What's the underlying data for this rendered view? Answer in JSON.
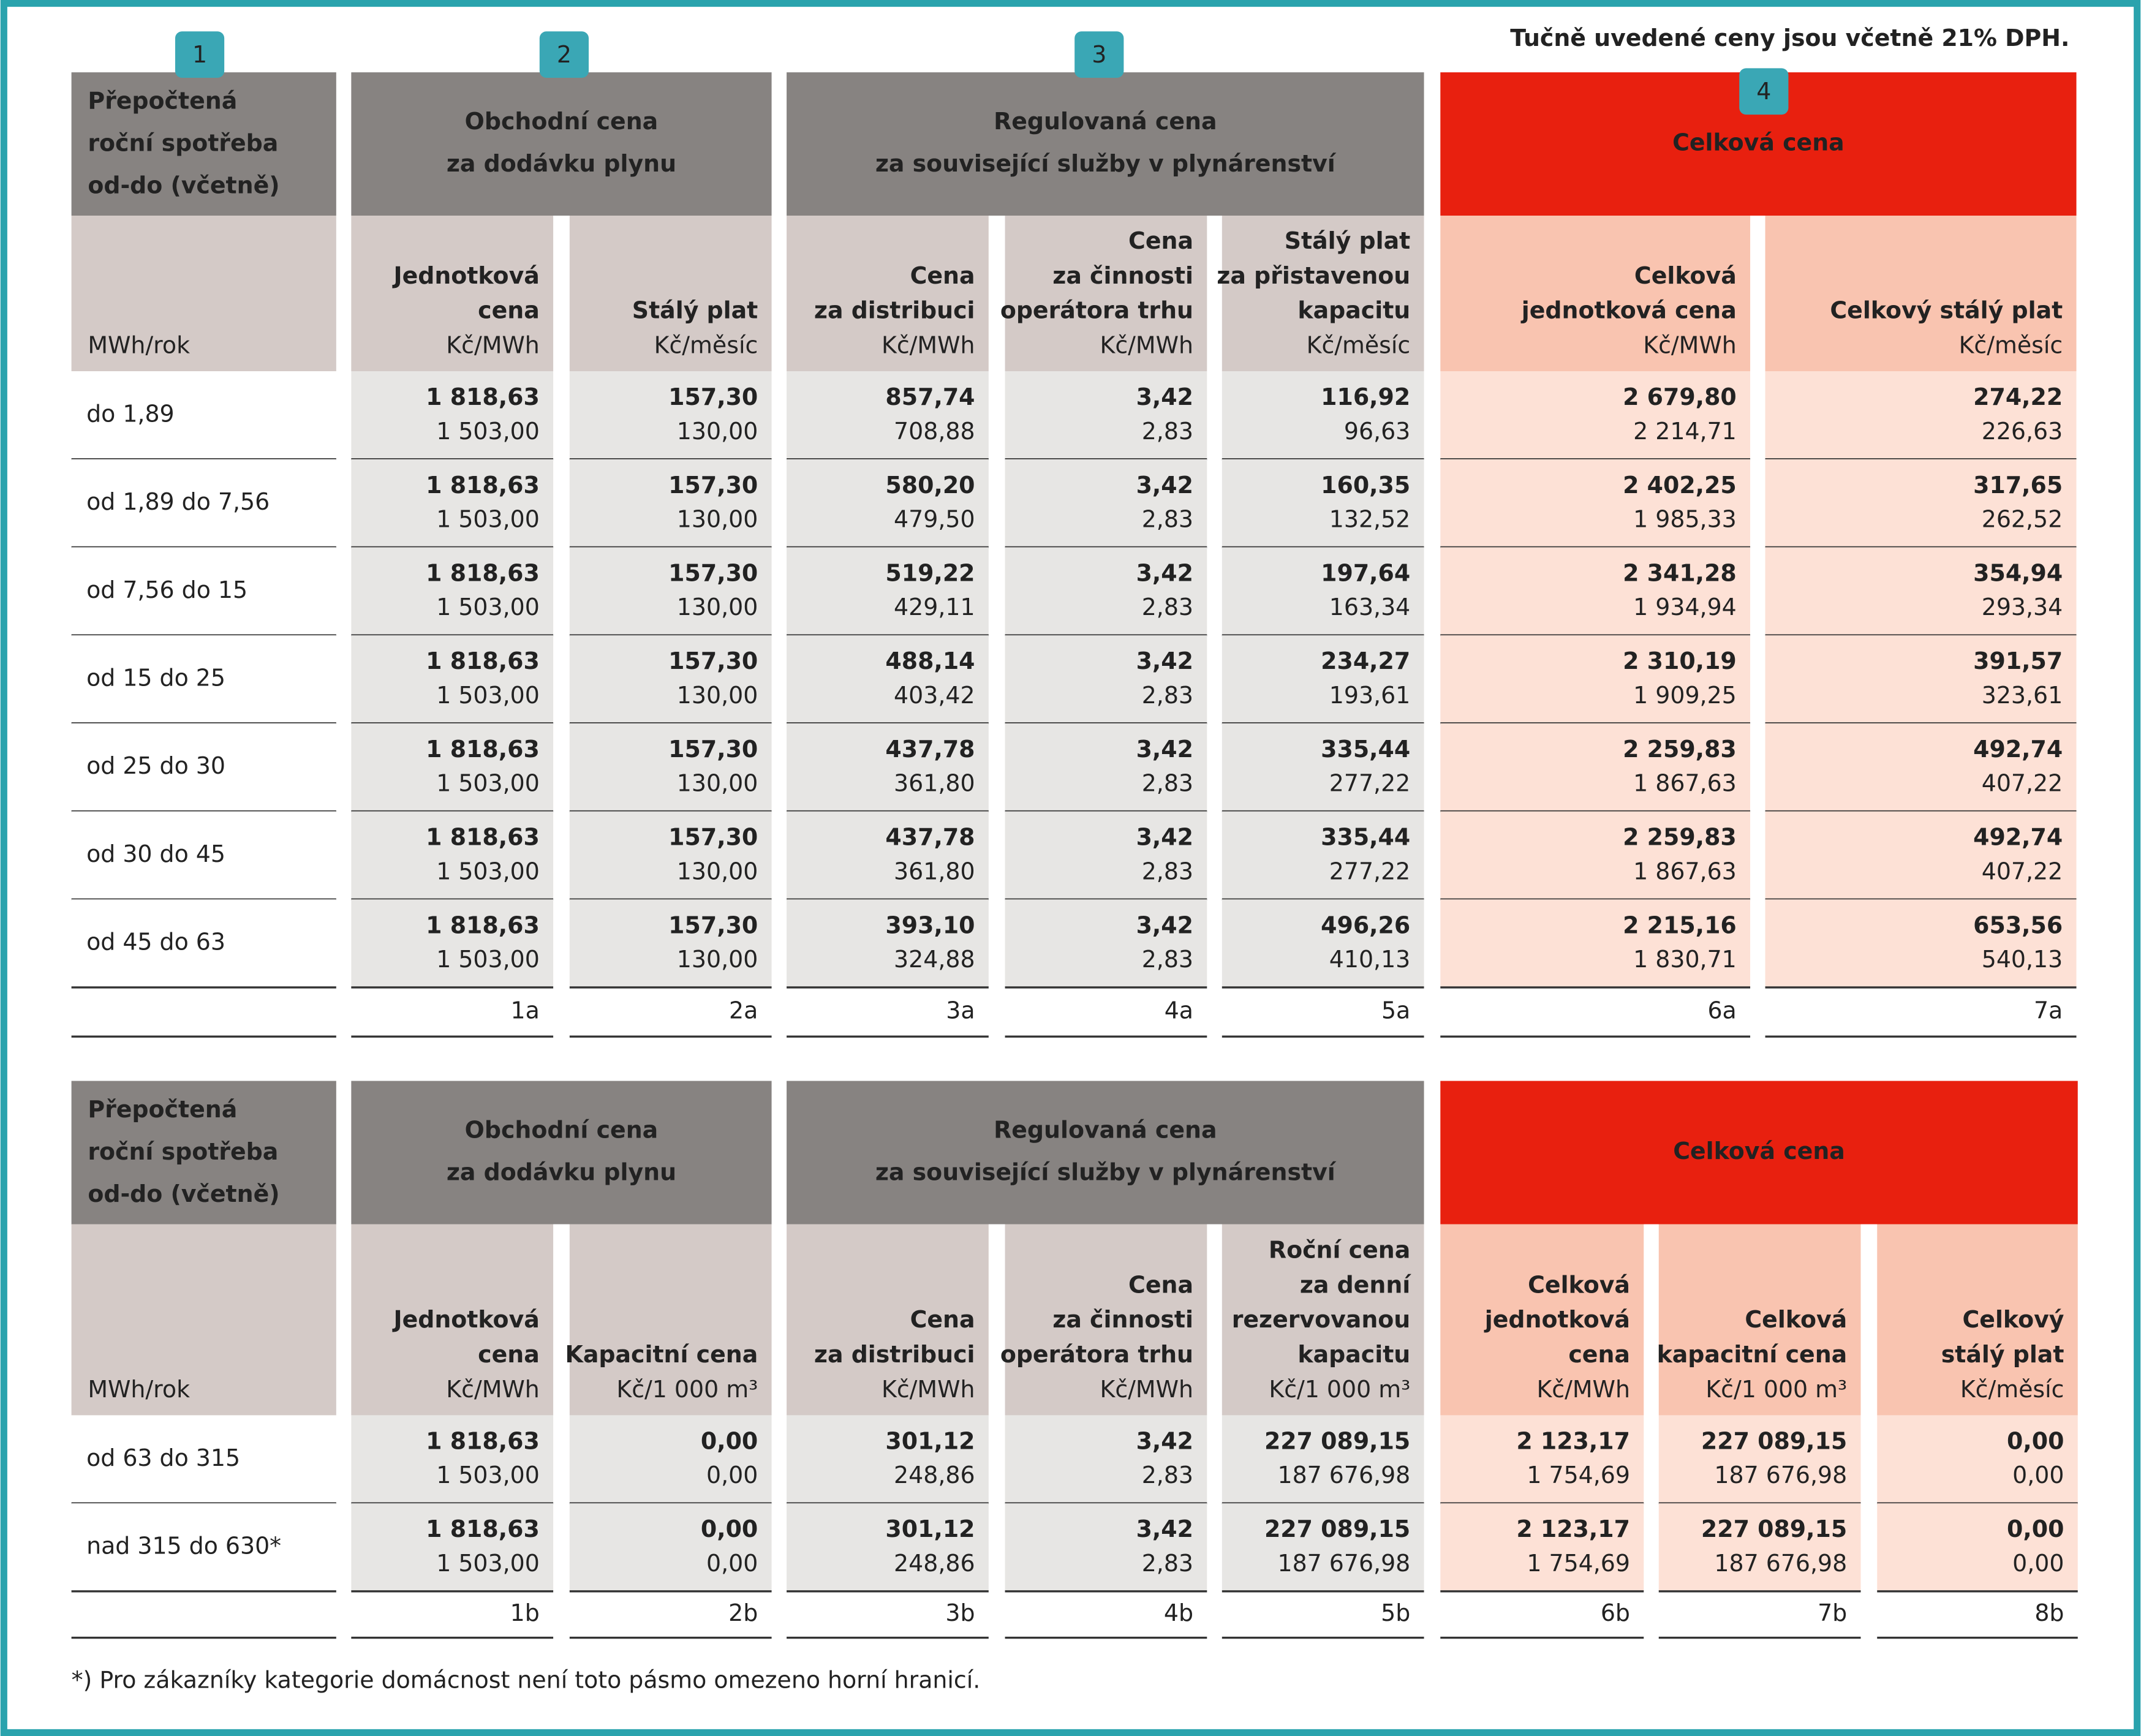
{
  "note": "Tučně uvedené ceny jsou včetně 21% DPH.",
  "badges": [
    "1",
    "2",
    "3",
    "4"
  ],
  "tables": [
    {
      "groups": [
        [
          "Přepočtená",
          "roční spotřeba",
          "od-do (včetně)"
        ],
        [
          "Obchodní cena",
          "za dodávku plynu"
        ],
        [
          "Regulovaná cena",
          "za související služby v plynárenství"
        ],
        [
          "Celková cena"
        ]
      ],
      "columns": [
        {
          "unit": "MWh/rok"
        },
        {
          "title": [
            "Jednotková",
            "cena"
          ],
          "unit": "Kč/MWh"
        },
        {
          "title": [
            "Stálý plat"
          ],
          "unit": "Kč/měsíc"
        },
        {
          "title": [
            "Cena",
            "za distribuci"
          ],
          "unit": "Kč/MWh"
        },
        {
          "title": [
            "Cena",
            "za činnosti",
            "operátora trhu"
          ],
          "unit": "Kč/MWh"
        },
        {
          "title": [
            "Stálý plat",
            "za přistavenou",
            "kapacitu"
          ],
          "unit": "Kč/měsíc"
        },
        {
          "title": [
            "Celková",
            "jednotková cena"
          ],
          "unit": "Kč/MWh"
        },
        {
          "title": [
            "Celkový stálý plat"
          ],
          "unit": "Kč/měsíc"
        }
      ],
      "rows": [
        {
          "label": "do 1,89",
          "bold": [
            "1 818,63",
            "157,30",
            "857,74",
            "3,42",
            "116,92",
            "2 679,80",
            "274,22"
          ],
          "regular": [
            "1 503,00",
            "130,00",
            "708,88",
            "2,83",
            "96,63",
            "2 214,71",
            "226,63"
          ]
        },
        {
          "label": "od 1,89 do 7,56",
          "bold": [
            "1 818,63",
            "157,30",
            "580,20",
            "3,42",
            "160,35",
            "2 402,25",
            "317,65"
          ],
          "regular": [
            "1 503,00",
            "130,00",
            "479,50",
            "2,83",
            "132,52",
            "1 985,33",
            "262,52"
          ]
        },
        {
          "label": "od 7,56 do 15",
          "bold": [
            "1 818,63",
            "157,30",
            "519,22",
            "3,42",
            "197,64",
            "2 341,28",
            "354,94"
          ],
          "regular": [
            "1 503,00",
            "130,00",
            "429,11",
            "2,83",
            "163,34",
            "1 934,94",
            "293,34"
          ]
        },
        {
          "label": "od 15 do 25",
          "bold": [
            "1 818,63",
            "157,30",
            "488,14",
            "3,42",
            "234,27",
            "2 310,19",
            "391,57"
          ],
          "regular": [
            "1 503,00",
            "130,00",
            "403,42",
            "2,83",
            "193,61",
            "1 909,25",
            "323,61"
          ]
        },
        {
          "label": "od 25 do 30",
          "bold": [
            "1 818,63",
            "157,30",
            "437,78",
            "3,42",
            "335,44",
            "2 259,83",
            "492,74"
          ],
          "regular": [
            "1 503,00",
            "130,00",
            "361,80",
            "2,83",
            "277,22",
            "1 867,63",
            "407,22"
          ]
        },
        {
          "label": "od 30 do 45",
          "bold": [
            "1 818,63",
            "157,30",
            "437,78",
            "3,42",
            "335,44",
            "2 259,83",
            "492,74"
          ],
          "regular": [
            "1 503,00",
            "130,00",
            "361,80",
            "2,83",
            "277,22",
            "1 867,63",
            "407,22"
          ]
        },
        {
          "label": "od 45 do 63",
          "bold": [
            "1 818,63",
            "157,30",
            "393,10",
            "3,42",
            "496,26",
            "2 215,16",
            "653,56"
          ],
          "regular": [
            "1 503,00",
            "130,00",
            "324,88",
            "2,83",
            "410,13",
            "1 830,71",
            "540,13"
          ]
        }
      ],
      "footer": [
        "1a",
        "2a",
        "3a",
        "4a",
        "5a",
        "6a",
        "7a"
      ]
    },
    {
      "groups": [
        [
          "Přepočtená",
          "roční spotřeba",
          "od-do (včetně)"
        ],
        [
          "Obchodní cena",
          "za dodávku plynu"
        ],
        [
          "Regulovaná cena",
          "za související služby v plynárenství"
        ],
        [
          "Celková cena"
        ]
      ],
      "columns": [
        {
          "unit": "MWh/rok"
        },
        {
          "title": [
            "Jednotková",
            "cena"
          ],
          "unit": "Kč/MWh"
        },
        {
          "title": [
            "Kapacitní cena"
          ],
          "unit": "Kč/1 000 m³"
        },
        {
          "title": [
            "Cena",
            "za distribuci"
          ],
          "unit": "Kč/MWh"
        },
        {
          "title": [
            "Cena",
            "za činnosti",
            "operátora trhu"
          ],
          "unit": "Kč/MWh"
        },
        {
          "title": [
            "Roční cena",
            "za denní",
            "rezervovanou",
            "kapacitu"
          ],
          "unit": "Kč/1 000 m³"
        },
        {
          "title": [
            "Celková",
            "jednotková",
            "cena"
          ],
          "unit": "Kč/MWh"
        },
        {
          "title": [
            "Celková",
            "kapacitní cena"
          ],
          "unit": "Kč/1 000 m³"
        },
        {
          "title": [
            "Celkový",
            "stálý plat"
          ],
          "unit": "Kč/měsíc"
        }
      ],
      "rows": [
        {
          "label": "od 63 do 315",
          "bold": [
            "1 818,63",
            "0,00",
            "301,12",
            "3,42",
            "227 089,15",
            "2 123,17",
            "227 089,15",
            "0,00"
          ],
          "regular": [
            "1 503,00",
            "0,00",
            "248,86",
            "2,83",
            "187 676,98",
            "1 754,69",
            "187 676,98",
            "0,00"
          ]
        },
        {
          "label": "nad 315 do 630*",
          "bold": [
            "1 818,63",
            "0,00",
            "301,12",
            "3,42",
            "227 089,15",
            "2 123,17",
            "227 089,15",
            "0,00"
          ],
          "regular": [
            "1 503,00",
            "0,00",
            "248,86",
            "2,83",
            "187 676,98",
            "1 754,69",
            "187 676,98",
            "0,00"
          ]
        }
      ],
      "footer": [
        "1b",
        "2b",
        "3b",
        "4b",
        "5b",
        "6b",
        "7b",
        "8b"
      ]
    }
  ],
  "footnote": "*) Pro zákazníky kategorie domácnost není toto pásmo omezeno horní hranicí."
}
